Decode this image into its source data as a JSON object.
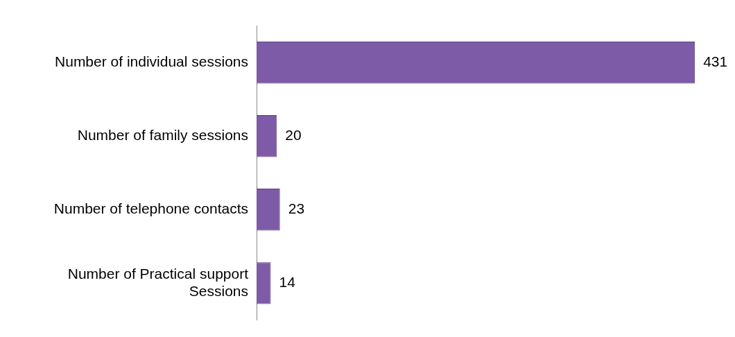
{
  "chart_data": {
    "type": "bar",
    "orientation": "horizontal",
    "categories": [
      "Number of individual sessions",
      "Number of family sessions",
      "Number of telephone contacts",
      "Number of Practical support Sessions"
    ],
    "values": [
      431,
      20,
      23,
      14
    ],
    "color": "#7d5ba6",
    "data_labels": true
  }
}
